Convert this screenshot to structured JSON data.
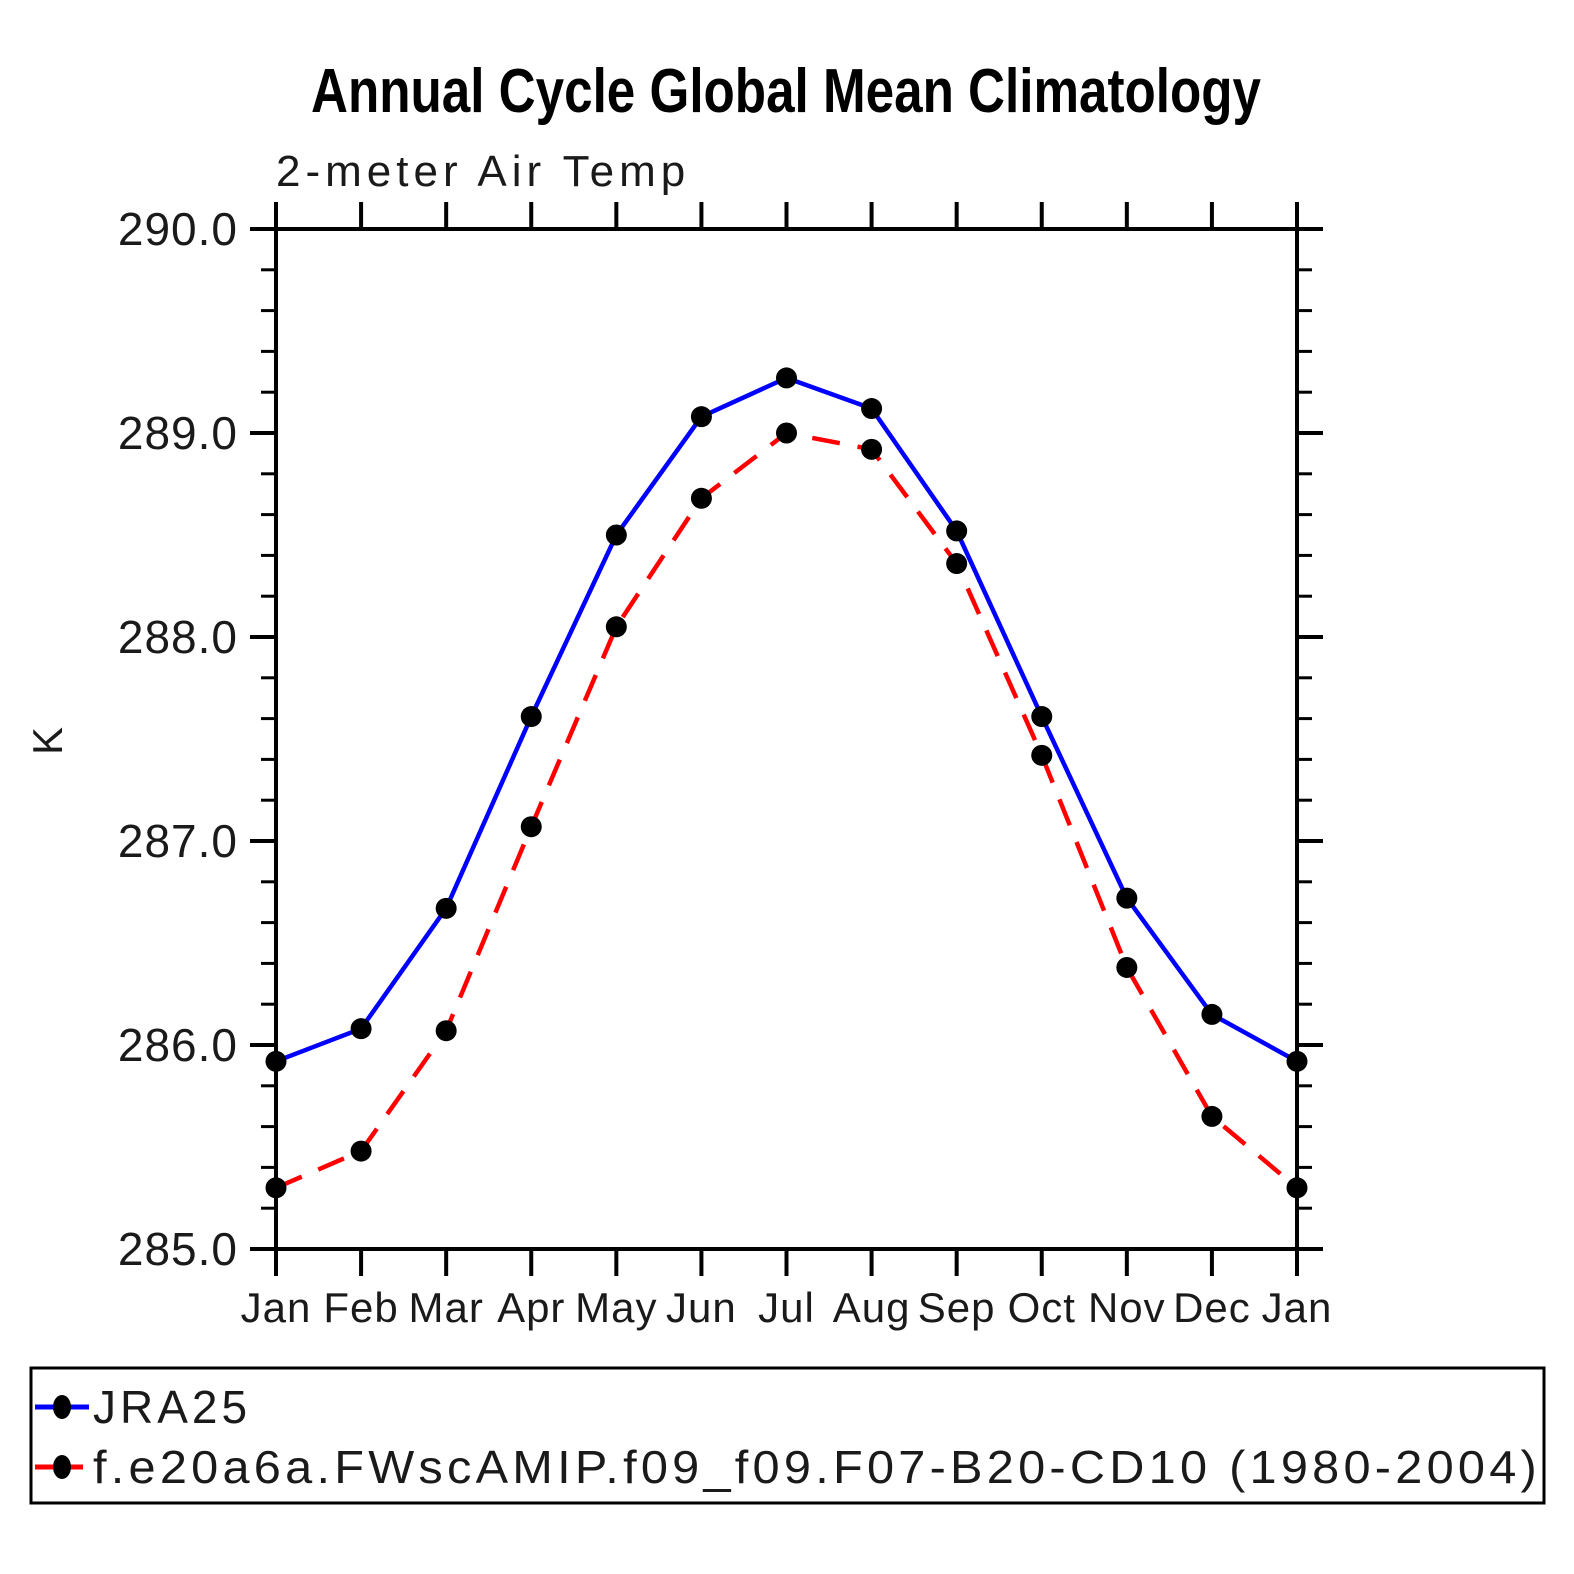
{
  "page": {
    "background": "#ffffff",
    "frame_color": "#000000",
    "text_color": "#1a1a1a"
  },
  "chart_data": {
    "type": "line",
    "title": "Annual Cycle Global Mean Climatology",
    "subtitle": "2-meter Air Temp",
    "ylabel": "K",
    "xlabel": "",
    "x_categories": [
      "Jan",
      "Feb",
      "Mar",
      "Apr",
      "May",
      "Jun",
      "Jul",
      "Aug",
      "Sep",
      "Oct",
      "Nov",
      "Dec",
      "Jan"
    ],
    "ylim": [
      285.0,
      290.0
    ],
    "ytick_labels": [
      "285.0",
      "286.0",
      "287.0",
      "288.0",
      "289.0",
      "290.0"
    ],
    "y_minor_interval": 0.2,
    "grid": false,
    "legend_position": "bottom-box",
    "series": [
      {
        "name": "JRA25",
        "color": "#0000ff",
        "line_style": "solid",
        "marker": "filled-circle",
        "marker_color": "#000000",
        "values": [
          285.92,
          286.08,
          286.67,
          287.61,
          288.5,
          289.08,
          289.27,
          289.12,
          288.52,
          287.61,
          286.72,
          286.15,
          285.92
        ]
      },
      {
        "name": "f.e20a6a.FWscAMIP.f09_f09.F07-B20-CD10 (1980-2004)",
        "color": "#ff0000",
        "line_style": "dashed",
        "marker": "filled-circle",
        "marker_color": "#000000",
        "values": [
          285.3,
          285.48,
          286.07,
          287.07,
          288.05,
          288.68,
          289.0,
          288.92,
          288.36,
          287.42,
          286.38,
          285.65,
          285.3
        ]
      }
    ]
  }
}
